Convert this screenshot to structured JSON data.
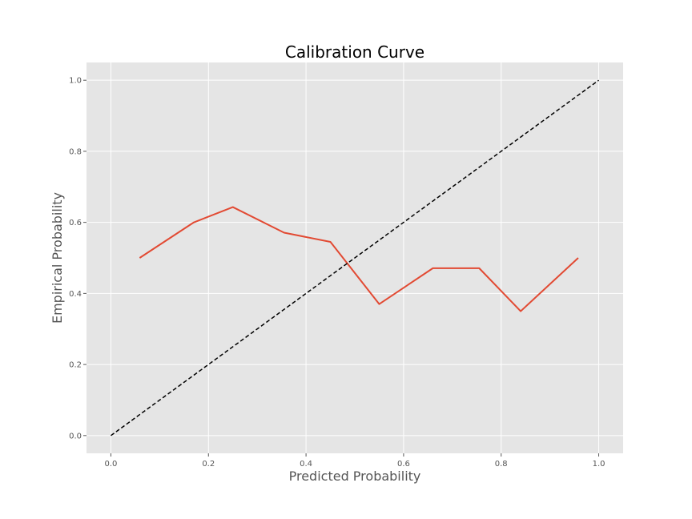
{
  "chart_data": {
    "type": "line",
    "title": "Calibration Curve",
    "xlabel": "Predicted Probability",
    "ylabel": "Empirical Probability",
    "xlim": [
      -0.05,
      1.05
    ],
    "ylim": [
      -0.05,
      1.05
    ],
    "x_ticks": [
      "0.0",
      "0.2",
      "0.4",
      "0.6",
      "0.8",
      "1.0"
    ],
    "y_ticks": [
      "0.0",
      "0.2",
      "0.4",
      "0.6",
      "0.8",
      "1.0"
    ],
    "grid": true,
    "legend": "none",
    "series": [
      {
        "style": "solid",
        "color": "#E24A33",
        "x": [
          0.059,
          0.17,
          0.25,
          0.355,
          0.45,
          0.55,
          0.66,
          0.755,
          0.84,
          0.958
        ],
        "y": [
          0.5,
          0.6,
          0.643,
          0.571,
          0.545,
          0.37,
          0.471,
          0.471,
          0.35,
          0.5
        ]
      },
      {
        "style": "dashed",
        "color": "#000000",
        "x": [
          0.0,
          1.0
        ],
        "y": [
          0.0,
          1.0
        ]
      }
    ],
    "colors": {
      "plot_background": "#E5E5E5",
      "grid": "#FFFFFF",
      "tick_text": "#555555"
    }
  }
}
